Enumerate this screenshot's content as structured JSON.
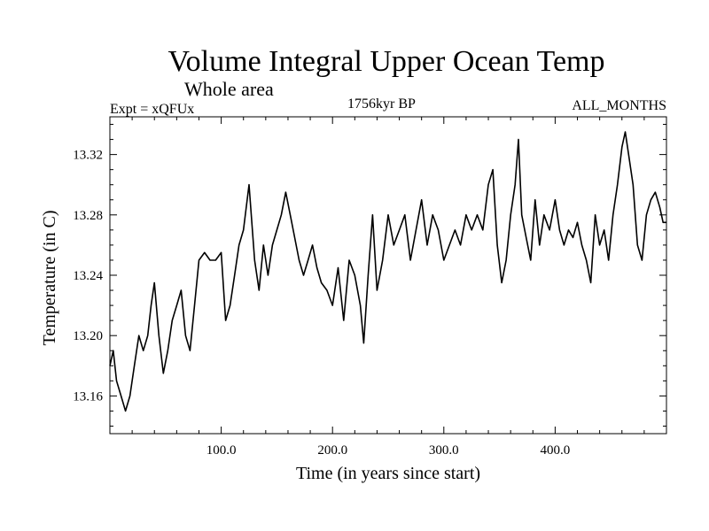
{
  "chart_data": {
    "type": "line",
    "title": "Volume Integral Upper Ocean Temp",
    "subtitle": "Whole area",
    "header_left": "Expt = xQFUx",
    "header_center": "1756kyr BP",
    "header_right": "ALL_MONTHS",
    "xlabel": "Time (in years since start)",
    "ylabel": "Temperature (in C)",
    "xlim": [
      0,
      500
    ],
    "ylim": [
      13.135,
      13.345
    ],
    "x_ticks": [
      100,
      200,
      300,
      400
    ],
    "x_tick_labels": [
      "100.0",
      "200.0",
      "300.0",
      "400.0"
    ],
    "y_ticks": [
      13.16,
      13.2,
      13.24,
      13.28,
      13.32
    ],
    "y_tick_labels": [
      "13.16",
      "13.20",
      "13.24",
      "13.28",
      "13.32"
    ],
    "grid": false,
    "series": [
      {
        "name": "Temperature",
        "color": "#000000",
        "x": [
          0,
          3,
          6,
          10,
          14,
          18,
          22,
          26,
          30,
          34,
          37,
          40,
          44,
          48,
          52,
          56,
          60,
          64,
          68,
          72,
          76,
          80,
          85,
          90,
          95,
          100,
          104,
          108,
          112,
          116,
          120,
          125,
          130,
          134,
          138,
          142,
          146,
          150,
          154,
          158,
          162,
          166,
          170,
          174,
          178,
          182,
          186,
          190,
          195,
          200,
          205,
          210,
          215,
          220,
          225,
          228,
          232,
          236,
          240,
          245,
          250,
          255,
          260,
          265,
          270,
          275,
          280,
          285,
          290,
          295,
          300,
          305,
          310,
          315,
          320,
          325,
          330,
          335,
          340,
          344,
          348,
          352,
          356,
          360,
          364,
          367,
          370,
          374,
          378,
          382,
          386,
          390,
          395,
          400,
          404,
          408,
          412,
          416,
          420,
          424,
          428,
          432,
          436,
          440,
          444,
          448,
          452,
          456,
          460,
          463,
          466,
          470,
          474,
          478,
          482,
          486,
          490,
          494,
          497,
          500
        ],
        "y": [
          13.18,
          13.19,
          13.17,
          13.16,
          13.15,
          13.16,
          13.18,
          13.2,
          13.19,
          13.2,
          13.22,
          13.235,
          13.2,
          13.175,
          13.19,
          13.21,
          13.22,
          13.23,
          13.2,
          13.19,
          13.22,
          13.25,
          13.255,
          13.25,
          13.25,
          13.255,
          13.21,
          13.22,
          13.24,
          13.26,
          13.27,
          13.3,
          13.25,
          13.23,
          13.26,
          13.24,
          13.26,
          13.27,
          13.28,
          13.295,
          13.28,
          13.265,
          13.25,
          13.24,
          13.25,
          13.26,
          13.245,
          13.235,
          13.23,
          13.22,
          13.245,
          13.21,
          13.25,
          13.24,
          13.22,
          13.195,
          13.24,
          13.28,
          13.23,
          13.25,
          13.28,
          13.26,
          13.27,
          13.28,
          13.25,
          13.27,
          13.29,
          13.26,
          13.28,
          13.27,
          13.25,
          13.26,
          13.27,
          13.26,
          13.28,
          13.27,
          13.28,
          13.27,
          13.3,
          13.31,
          13.26,
          13.235,
          13.25,
          13.28,
          13.3,
          13.33,
          13.28,
          13.265,
          13.25,
          13.29,
          13.26,
          13.28,
          13.27,
          13.29,
          13.27,
          13.26,
          13.27,
          13.265,
          13.275,
          13.26,
          13.25,
          13.235,
          13.28,
          13.26,
          13.27,
          13.25,
          13.28,
          13.3,
          13.325,
          13.335,
          13.32,
          13.3,
          13.26,
          13.25,
          13.28,
          13.29,
          13.295,
          13.285,
          13.275,
          13.275
        ]
      }
    ]
  }
}
